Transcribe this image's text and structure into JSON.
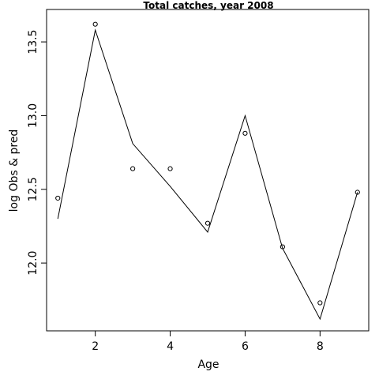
{
  "chart_data": {
    "type": "line",
    "title": "Total catches, year 2008",
    "xlabel": "Age",
    "ylabel": "log Obs & pred",
    "xlim": [
      0.7,
      9.3
    ],
    "ylim": [
      11.54,
      13.72
    ],
    "x_ticks": [
      2,
      4,
      6,
      8
    ],
    "x_tick_labels": [
      "2",
      "4",
      "6",
      "8"
    ],
    "y_ticks": [
      12.0,
      12.5,
      13.0,
      13.5
    ],
    "y_tick_labels": [
      "12.0",
      "12.5",
      "13.0",
      "13.5"
    ],
    "grid": false,
    "series": [
      {
        "style": "points",
        "marker": "open-circle",
        "x": [
          1,
          2,
          3,
          4,
          5,
          6,
          7,
          8,
          9
        ],
        "y": [
          12.44,
          13.62,
          12.64,
          12.64,
          12.27,
          12.88,
          12.11,
          11.73,
          12.48
        ]
      },
      {
        "style": "line",
        "x": [
          1,
          2,
          3,
          4,
          5,
          6,
          7,
          8,
          9
        ],
        "y": [
          12.3,
          13.58,
          12.81,
          12.52,
          12.21,
          13.0,
          12.1,
          11.62,
          12.48
        ]
      }
    ],
    "colors": {
      "line": "#000000",
      "points": "#000000",
      "frame": "#000000"
    }
  }
}
